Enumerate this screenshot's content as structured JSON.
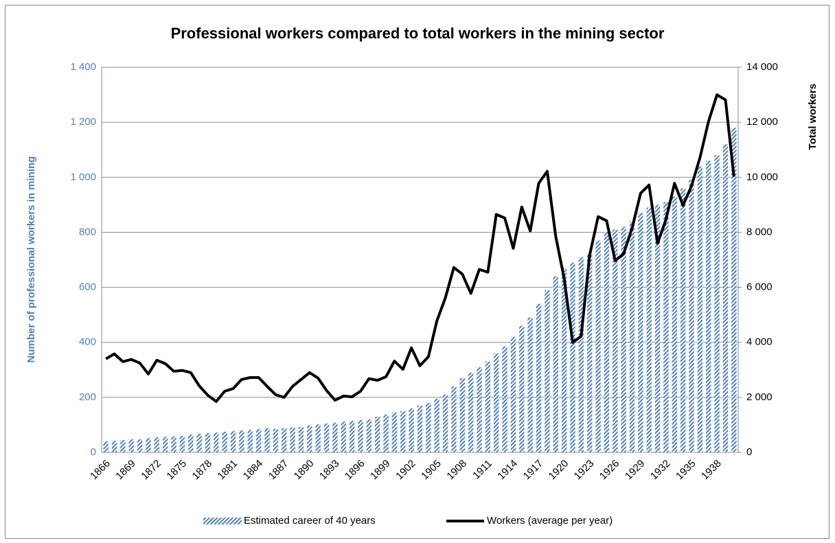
{
  "chart_data": {
    "type": "bar",
    "title": "Professional workers compared to total workers in the mining sector",
    "ylabel": "Number of professional workers in mining",
    "y2label": "Total workers",
    "categories": [
      "1866",
      null,
      null,
      "1869",
      null,
      null,
      "1872",
      null,
      null,
      "1875",
      null,
      null,
      "1878",
      null,
      null,
      "1881",
      null,
      null,
      "1884",
      null,
      null,
      "1887",
      null,
      null,
      "1890",
      null,
      null,
      "1893",
      null,
      null,
      "1896",
      null,
      null,
      "1899",
      null,
      null,
      "1902",
      null,
      null,
      "1905",
      null,
      null,
      "1908",
      null,
      null,
      "1911",
      null,
      null,
      "1914",
      null,
      null,
      "1917",
      null,
      null,
      "1920",
      null,
      null,
      "1923",
      null,
      null,
      "1926",
      null,
      null,
      "1929",
      null,
      null,
      "1932",
      null,
      null,
      "1935",
      null,
      null,
      "1938",
      null,
      null
    ],
    "series": [
      {
        "name": "Estimated career of 40 years",
        "type": "bar",
        "color": "#4f81bd",
        "hatched": true,
        "values": [
          40,
          42,
          45,
          48,
          48,
          52,
          55,
          57,
          58,
          60,
          65,
          68,
          70,
          72,
          75,
          78,
          80,
          82,
          85,
          88,
          86,
          88,
          90,
          92,
          98,
          102,
          105,
          108,
          112,
          115,
          118,
          120,
          130,
          138,
          145,
          150,
          160,
          170,
          180,
          195,
          210,
          240,
          270,
          290,
          310,
          330,
          360,
          385,
          420,
          460,
          490,
          540,
          590,
          640,
          670,
          690,
          710,
          720,
          770,
          800,
          810,
          820,
          840,
          870,
          890,
          900,
          910,
          930,
          960,
          990,
          1040,
          1060,
          1080,
          1120,
          1180
        ]
      },
      {
        "name": "Workers (average per year)",
        "type": "line",
        "color": "#000000",
        "axis": "y2",
        "values": [
          3400,
          3580,
          3300,
          3380,
          3250,
          2850,
          3350,
          3230,
          2950,
          2980,
          2900,
          2420,
          2080,
          1850,
          2220,
          2320,
          2650,
          2720,
          2720,
          2400,
          2100,
          2000,
          2400,
          2650,
          2900,
          2700,
          2250,
          1900,
          2050,
          2020,
          2220,
          2680,
          2620,
          2750,
          3320,
          3020,
          3800,
          3150,
          3480,
          4780,
          5620,
          6720,
          6480,
          5780,
          6650,
          6550,
          8650,
          8520,
          7420,
          8920,
          8050,
          9780,
          10220,
          7850,
          6320,
          4000,
          4220,
          7170,
          8570,
          8420,
          6970,
          7220,
          8150,
          9420,
          9720,
          7600,
          8470,
          9780,
          8980,
          9680,
          10720,
          12020,
          13000,
          12820,
          10020
        ]
      }
    ],
    "ylim": [
      0,
      1400
    ],
    "yticks": [
      0,
      200,
      400,
      600,
      800,
      {
        "value": 1000,
        "label": "1 000"
      },
      {
        "value": 1200,
        "label": "1 200"
      },
      {
        "value": 1400,
        "label": "1 400"
      }
    ],
    "y2lim": [
      0,
      14000
    ],
    "y2ticks": [
      0,
      {
        "value": 2000,
        "label": "2 000"
      },
      {
        "value": 4000,
        "label": "4 000"
      },
      {
        "value": 6000,
        "label": "6 000"
      },
      {
        "value": 8000,
        "label": "8 000"
      },
      {
        "value": 10000,
        "label": "10 000"
      },
      {
        "value": 12000,
        "label": "12 000"
      },
      {
        "value": 14000,
        "label": "14 000"
      }
    ],
    "grid": true,
    "legend": "bottom"
  }
}
